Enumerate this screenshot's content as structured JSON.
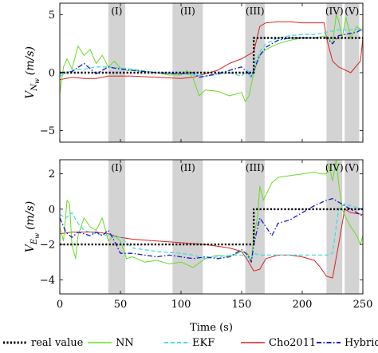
{
  "chart_data": [
    {
      "type": "line",
      "ylabel": "V_{N_w} (m/s)",
      "ylabel_main": "V",
      "ylabel_sub": "N",
      "ylabel_subsub": "w",
      "ylabel_unit": "(m/s)",
      "xlim": [
        0,
        250
      ],
      "ylim": [
        -6,
        6
      ],
      "yticks": [
        -5,
        0,
        5
      ],
      "ytick_labels": [
        "−5",
        "0",
        "5"
      ],
      "regions": [
        {
          "label": "(I)",
          "x0": 40,
          "x1": 54
        },
        {
          "label": "(II)",
          "x0": 93,
          "x1": 118
        },
        {
          "label": "(III)",
          "x0": 153,
          "x1": 169
        },
        {
          "label": "(IV)",
          "x0": 220,
          "x1": 233
        },
        {
          "label": "(V)",
          "x0": 235,
          "x1": 247
        }
      ],
      "series": [
        {
          "name": "real value",
          "x": [
            0,
            160,
            160,
            250
          ],
          "y": [
            0,
            0,
            3,
            3
          ]
        },
        {
          "name": "NN",
          "x": [
            0,
            3,
            6,
            10,
            15,
            20,
            25,
            30,
            35,
            40,
            45,
            50,
            55,
            60,
            70,
            80,
            90,
            100,
            105,
            110,
            115,
            120,
            130,
            140,
            150,
            153,
            156,
            158,
            160,
            165,
            170,
            180,
            190,
            200,
            210,
            220,
            225,
            228,
            230,
            233,
            236,
            240,
            245,
            250
          ],
          "y": [
            -1.8,
            0.5,
            1.2,
            0.3,
            2.3,
            1.5,
            2.0,
            0.8,
            1.5,
            0.5,
            1.0,
            0.4,
            0.2,
            0.2,
            0.1,
            0.0,
            -0.2,
            -0.2,
            0.2,
            -0.5,
            -2.0,
            -1.5,
            -1.6,
            -2.0,
            -1.7,
            -2.5,
            -2.0,
            -1.0,
            0.0,
            1.5,
            2.0,
            2.5,
            2.8,
            3.0,
            3.0,
            3.2,
            2.5,
            5.0,
            4.5,
            3.0,
            4.8,
            3.0,
            4.0,
            3.6
          ]
        },
        {
          "name": "EKF",
          "x": [
            0,
            10,
            20,
            30,
            40,
            50,
            60,
            80,
            100,
            120,
            140,
            150,
            155,
            158,
            160,
            165,
            170,
            180,
            190,
            200,
            210,
            220,
            230,
            240,
            250
          ],
          "y": [
            -0.3,
            0.2,
            0.3,
            0.5,
            0.5,
            0.4,
            0.3,
            0.0,
            -0.1,
            -0.3,
            0.0,
            -0.3,
            0.2,
            -0.5,
            0.5,
            1.8,
            2.5,
            3.0,
            3.2,
            3.3,
            3.3,
            3.5,
            3.7,
            3.7,
            3.8
          ]
        },
        {
          "name": "Cho2011",
          "x": [
            0,
            10,
            20,
            30,
            40,
            50,
            60,
            80,
            100,
            110,
            120,
            130,
            140,
            150,
            160,
            165,
            170,
            180,
            190,
            200,
            210,
            218,
            220,
            225,
            230,
            240,
            248,
            250
          ],
          "y": [
            -0.6,
            -0.4,
            -0.5,
            -0.5,
            -0.3,
            -0.3,
            -0.3,
            -0.4,
            -0.5,
            -0.4,
            -0.1,
            0.2,
            0.8,
            1.2,
            1.8,
            4.0,
            4.3,
            4.4,
            4.4,
            4.3,
            4.3,
            4.3,
            3.0,
            1.0,
            0.5,
            0.0,
            1.0,
            3.0
          ]
        },
        {
          "name": "Hybrid",
          "x": [
            0,
            10,
            20,
            30,
            40,
            50,
            60,
            80,
            100,
            110,
            115,
            130,
            140,
            150,
            158,
            160,
            165,
            170,
            180,
            190,
            200,
            210,
            220,
            225,
            230,
            235,
            240,
            245,
            250
          ],
          "y": [
            0.0,
            0.1,
            0.8,
            -0.1,
            0.5,
            0.3,
            0.2,
            0.0,
            -0.1,
            0.0,
            -0.4,
            -0.1,
            0.2,
            0.5,
            -0.3,
            0.2,
            1.5,
            2.2,
            2.8,
            3.0,
            3.0,
            3.0,
            3.0,
            2.5,
            3.2,
            3.3,
            3.4,
            3.5,
            3.8
          ]
        }
      ]
    },
    {
      "type": "line",
      "xlabel": "Time (s)",
      "ylabel": "V_{E_w} (m/s)",
      "ylabel_main": "V",
      "ylabel_sub": "E",
      "ylabel_subsub": "w",
      "ylabel_unit": "(m/s)",
      "xlim": [
        0,
        250
      ],
      "ylim": [
        -4.8,
        2.8
      ],
      "xticks": [
        0,
        50,
        100,
        150,
        200,
        250
      ],
      "xtick_labels": [
        "0",
        "50",
        "100",
        "150",
        "200",
        "250"
      ],
      "yticks": [
        -4,
        -2,
        0,
        2
      ],
      "ytick_labels": [
        "−4",
        "−2",
        "0",
        "2"
      ],
      "regions": [
        {
          "label": "(I)",
          "x0": 40,
          "x1": 54
        },
        {
          "label": "(II)",
          "x0": 93,
          "x1": 118
        },
        {
          "label": "(III)",
          "x0": 153,
          "x1": 169
        },
        {
          "label": "(IV)",
          "x0": 220,
          "x1": 233
        },
        {
          "label": "(V)",
          "x0": 235,
          "x1": 247
        }
      ],
      "series": [
        {
          "name": "real value",
          "x": [
            0,
            160,
            160,
            250
          ],
          "y": [
            -2,
            -2,
            0,
            0
          ]
        },
        {
          "name": "NN",
          "x": [
            0,
            3,
            6,
            8,
            10,
            13,
            15,
            20,
            25,
            30,
            35,
            40,
            45,
            50,
            55,
            60,
            70,
            80,
            90,
            100,
            110,
            120,
            130,
            140,
            150,
            155,
            158,
            160,
            163,
            165,
            168,
            170,
            175,
            180,
            190,
            200,
            210,
            215,
            220,
            222,
            225,
            228,
            230,
            233,
            236,
            240,
            245,
            248,
            250
          ],
          "y": [
            -1.0,
            -1.8,
            0.5,
            0.3,
            -2.0,
            -2.8,
            -1.5,
            -0.5,
            -1.0,
            -1.2,
            -0.5,
            -1.8,
            -1.5,
            -1.8,
            -2.8,
            -2.7,
            -3.0,
            -2.9,
            -3.1,
            -3.0,
            -3.3,
            -2.8,
            -2.6,
            -2.7,
            -2.4,
            -2.5,
            -3.0,
            -1.5,
            -0.5,
            1.3,
            0.5,
            0.8,
            1.5,
            1.8,
            1.9,
            2.0,
            2.1,
            2.0,
            2.0,
            2.5,
            1.6,
            2.8,
            1.5,
            0.0,
            -0.5,
            -1.0,
            -1.5,
            -2.0,
            -1.5
          ]
        },
        {
          "name": "EKF",
          "x": [
            0,
            5,
            10,
            15,
            20,
            30,
            40,
            50,
            60,
            80,
            100,
            110,
            120,
            130,
            140,
            150,
            158,
            160,
            165,
            170,
            180,
            190,
            200,
            210,
            220,
            225,
            230,
            235,
            240,
            250
          ],
          "y": [
            -0.3,
            -0.5,
            -0.2,
            -0.8,
            -1.2,
            -1.4,
            -1.5,
            -1.6,
            -2.2,
            -2.4,
            -2.5,
            -2.6,
            -2.8,
            -2.7,
            -2.6,
            -2.6,
            -2.8,
            -2.5,
            -2.6,
            -2.6,
            -2.6,
            -2.6,
            -2.6,
            -2.6,
            -2.6,
            -2.5,
            0.0,
            0.3,
            0.2,
            0.0
          ]
        },
        {
          "name": "Cho2011",
          "x": [
            0,
            10,
            20,
            30,
            40,
            50,
            60,
            80,
            100,
            120,
            140,
            150,
            155,
            160,
            165,
            170,
            180,
            190,
            200,
            210,
            215,
            220,
            225,
            230,
            235,
            240,
            250
          ],
          "y": [
            -1.4,
            -1.3,
            -1.3,
            -1.3,
            -1.4,
            -1.6,
            -1.7,
            -1.8,
            -1.9,
            -2.0,
            -2.2,
            -2.4,
            -2.9,
            -3.5,
            -3.4,
            -2.8,
            -2.6,
            -2.6,
            -2.7,
            -2.9,
            -3.3,
            -3.8,
            -3.9,
            -2.0,
            0.0,
            -0.2,
            -0.3
          ]
        },
        {
          "name": "Hybrid",
          "x": [
            0,
            5,
            10,
            15,
            20,
            25,
            30,
            35,
            40,
            45,
            50,
            60,
            70,
            80,
            90,
            100,
            110,
            120,
            130,
            140,
            150,
            155,
            158,
            160,
            165,
            170,
            175,
            180,
            190,
            200,
            210,
            220,
            225,
            230,
            235,
            240,
            245,
            250
          ],
          "y": [
            -0.5,
            -1.3,
            -1.6,
            -1.3,
            -1.4,
            -1.5,
            -1.3,
            -1.5,
            -1.2,
            -1.8,
            -2.5,
            -2.5,
            -2.6,
            -2.7,
            -2.6,
            -2.7,
            -2.8,
            -2.7,
            -2.8,
            -2.7,
            -2.3,
            -2.6,
            -3.0,
            -2.0,
            -0.5,
            -1.0,
            -1.5,
            -0.8,
            -0.6,
            -0.2,
            0.2,
            0.5,
            0.6,
            0.4,
            0.2,
            0.0,
            -0.2,
            -0.4
          ]
        }
      ]
    }
  ],
  "legend": {
    "placement": "bottom",
    "items": [
      {
        "label": "real value",
        "color": "#000000",
        "style": "dotted",
        "width": 2.4
      },
      {
        "label": "NN",
        "color": "#66dd22",
        "style": "solid",
        "width": 1.0
      },
      {
        "label": "EKF",
        "color": "#44dddd",
        "style": "dashed",
        "width": 1.3
      },
      {
        "label": "Cho2011",
        "color": "#dd2222",
        "style": "solid",
        "width": 1.0
      },
      {
        "label": "Hybrid",
        "color": "#1a1acc",
        "style": "dashdot",
        "width": 1.3
      }
    ]
  },
  "colors": {
    "real value": "#000000",
    "NN": "#66dd22",
    "EKF": "#44dddd",
    "Cho2011": "#dd2222",
    "Hybrid": "#1a1acc",
    "region": "#d3d3d3"
  }
}
